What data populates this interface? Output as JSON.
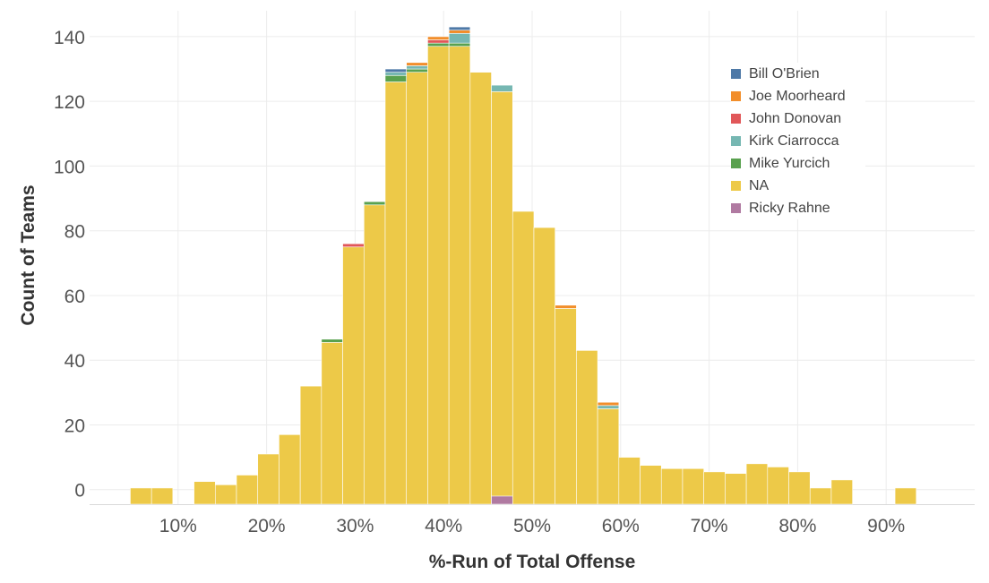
{
  "chart_data": {
    "type": "bar",
    "xlabel": "%-Run of Total Offense",
    "ylabel": "Count of Teams",
    "x_tick_labels": [
      "10%",
      "20%",
      "30%",
      "40%",
      "50%",
      "60%",
      "70%",
      "80%",
      "90%"
    ],
    "x_tick_values": [
      10,
      20,
      30,
      40,
      50,
      60,
      70,
      80,
      90
    ],
    "y_tick_labels": [
      "0",
      "20",
      "40",
      "60",
      "80",
      "100",
      "120",
      "140"
    ],
    "y_tick_values": [
      0,
      20,
      40,
      60,
      80,
      100,
      120,
      140
    ],
    "ylim": [
      -4.5,
      148
    ],
    "xlim": [
      0,
      100
    ],
    "bin_width": 2.4,
    "grid": true,
    "legend_position": "top-right",
    "bin_starts": [
      4.6,
      7.0,
      9.4,
      11.8,
      14.2,
      16.6,
      19.0,
      21.4,
      23.8,
      26.2,
      28.6,
      31.0,
      33.4,
      35.8,
      38.2,
      40.6,
      43.0,
      45.4,
      47.8,
      50.2,
      52.6,
      55.0,
      57.4,
      59.8,
      62.2,
      64.6,
      67.0,
      69.4,
      71.8,
      74.2,
      76.6,
      79.0,
      81.4,
      83.8,
      86.2,
      88.6,
      91.0
    ],
    "series": [
      {
        "name": "Bill O'Brien",
        "color": "#4e79a7",
        "values": [
          0,
          0,
          0,
          0,
          0,
          0,
          0,
          0,
          0,
          0,
          0,
          0,
          1,
          0,
          0,
          1,
          0,
          0,
          0,
          0,
          0,
          0,
          0,
          0,
          0,
          0,
          0,
          0,
          0,
          0,
          0,
          0,
          0,
          0,
          0,
          0,
          0
        ]
      },
      {
        "name": "Joe Moorheard",
        "color": "#f28e2b",
        "values": [
          0,
          0,
          0,
          0,
          0,
          0,
          0,
          0,
          0,
          0,
          0,
          0,
          0,
          1,
          1,
          1,
          0,
          0,
          0,
          0,
          1,
          0,
          1,
          0,
          0,
          0,
          0,
          0,
          0,
          0,
          0,
          0,
          0,
          0,
          0,
          0,
          0
        ]
      },
      {
        "name": "John Donovan",
        "color": "#e15759",
        "values": [
          0,
          0,
          0,
          0,
          0,
          0,
          0,
          0,
          0,
          0,
          1,
          0,
          0,
          0,
          1,
          0,
          0,
          0,
          0,
          0,
          0,
          0,
          0,
          0,
          0,
          0,
          0,
          0,
          0,
          0,
          0,
          0,
          0,
          0,
          0,
          0,
          0
        ]
      },
      {
        "name": "Kirk Ciarrocca",
        "color": "#76b7b2",
        "values": [
          0,
          0,
          0,
          0,
          0,
          0,
          0,
          0,
          0,
          0,
          0,
          0,
          1,
          1,
          0,
          3,
          0,
          2,
          0,
          0,
          0,
          0,
          1,
          0,
          0,
          0,
          0,
          0,
          0,
          0,
          0,
          0,
          0,
          0,
          0,
          0,
          0
        ]
      },
      {
        "name": "Mike Yurcich",
        "color": "#59a14f",
        "values": [
          0,
          0,
          0,
          0,
          0,
          0,
          0,
          0,
          0,
          1,
          0,
          1,
          2,
          1,
          1,
          1,
          0,
          0,
          0,
          0,
          0,
          0,
          0,
          0,
          0,
          0,
          0,
          0,
          0,
          0,
          0,
          0,
          0,
          0,
          0,
          0,
          0
        ]
      },
      {
        "name": "NA",
        "color": "#edc948",
        "values": [
          0.5,
          0.5,
          0,
          2.5,
          1.5,
          4.5,
          11,
          17,
          32,
          45.5,
          75,
          88,
          126,
          129,
          137,
          137,
          129,
          123,
          86,
          81,
          56,
          43,
          25,
          10,
          7.5,
          6.5,
          6.5,
          5.5,
          5,
          8,
          7,
          5.5,
          0.5,
          3,
          0,
          0,
          0.5
        ]
      },
      {
        "name": "Ricky Rahne",
        "color": "#b07aa1",
        "values": [
          0,
          0,
          0,
          0,
          0,
          0,
          0,
          0,
          0,
          0,
          0,
          0,
          0,
          0,
          0,
          0,
          0,
          1,
          0,
          0,
          0,
          0,
          0,
          0,
          0,
          0,
          0,
          0,
          0,
          0,
          0,
          0,
          0,
          0,
          0,
          0,
          0
        ]
      }
    ],
    "extra_bars": [
      {
        "x_start": 45.4,
        "value": 2.5,
        "series": "Ricky Rahne",
        "note": "drawn at base"
      }
    ]
  }
}
